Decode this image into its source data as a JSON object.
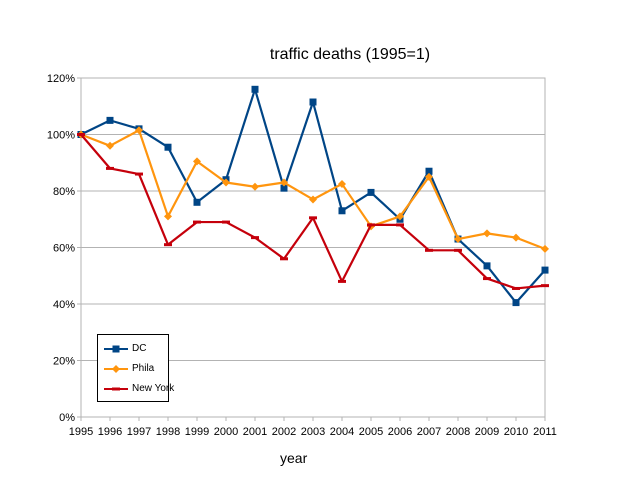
{
  "chart_data": {
    "type": "line",
    "title": "traffic deaths (1995=1)",
    "xlabel": "year",
    "ylabel": "",
    "ylim": [
      0,
      120
    ],
    "yticks": [
      "0%",
      "20%",
      "40%",
      "60%",
      "80%",
      "100%",
      "120%"
    ],
    "x": [
      "1995",
      "1996",
      "1997",
      "1998",
      "1999",
      "2000",
      "2001",
      "2002",
      "2003",
      "2004",
      "2005",
      "2006",
      "2007",
      "2008",
      "2009",
      "2010",
      "2011"
    ],
    "grid": "horizontal",
    "legend_position": "bottom-left",
    "series": [
      {
        "name": "DC",
        "color": "#004586",
        "marker": "square",
        "values": [
          100,
          105,
          102,
          95.5,
          76,
          84,
          116,
          81,
          111.5,
          73,
          79.5,
          70,
          87,
          63,
          53.5,
          40.5,
          52
        ]
      },
      {
        "name": "Phila",
        "color": "#ff950e",
        "marker": "diamond",
        "values": [
          100,
          96,
          101.5,
          71,
          90.5,
          83,
          81.5,
          83,
          77,
          82.5,
          67.5,
          71,
          85,
          63,
          65,
          63.5,
          59.5
        ]
      },
      {
        "name": "New York",
        "color": "#c5000b",
        "marker": "dash",
        "values": [
          100,
          88,
          86,
          61,
          69,
          69,
          63.5,
          56,
          70.5,
          48,
          68,
          68,
          59,
          59,
          49,
          45.5,
          46.5
        ]
      }
    ]
  }
}
